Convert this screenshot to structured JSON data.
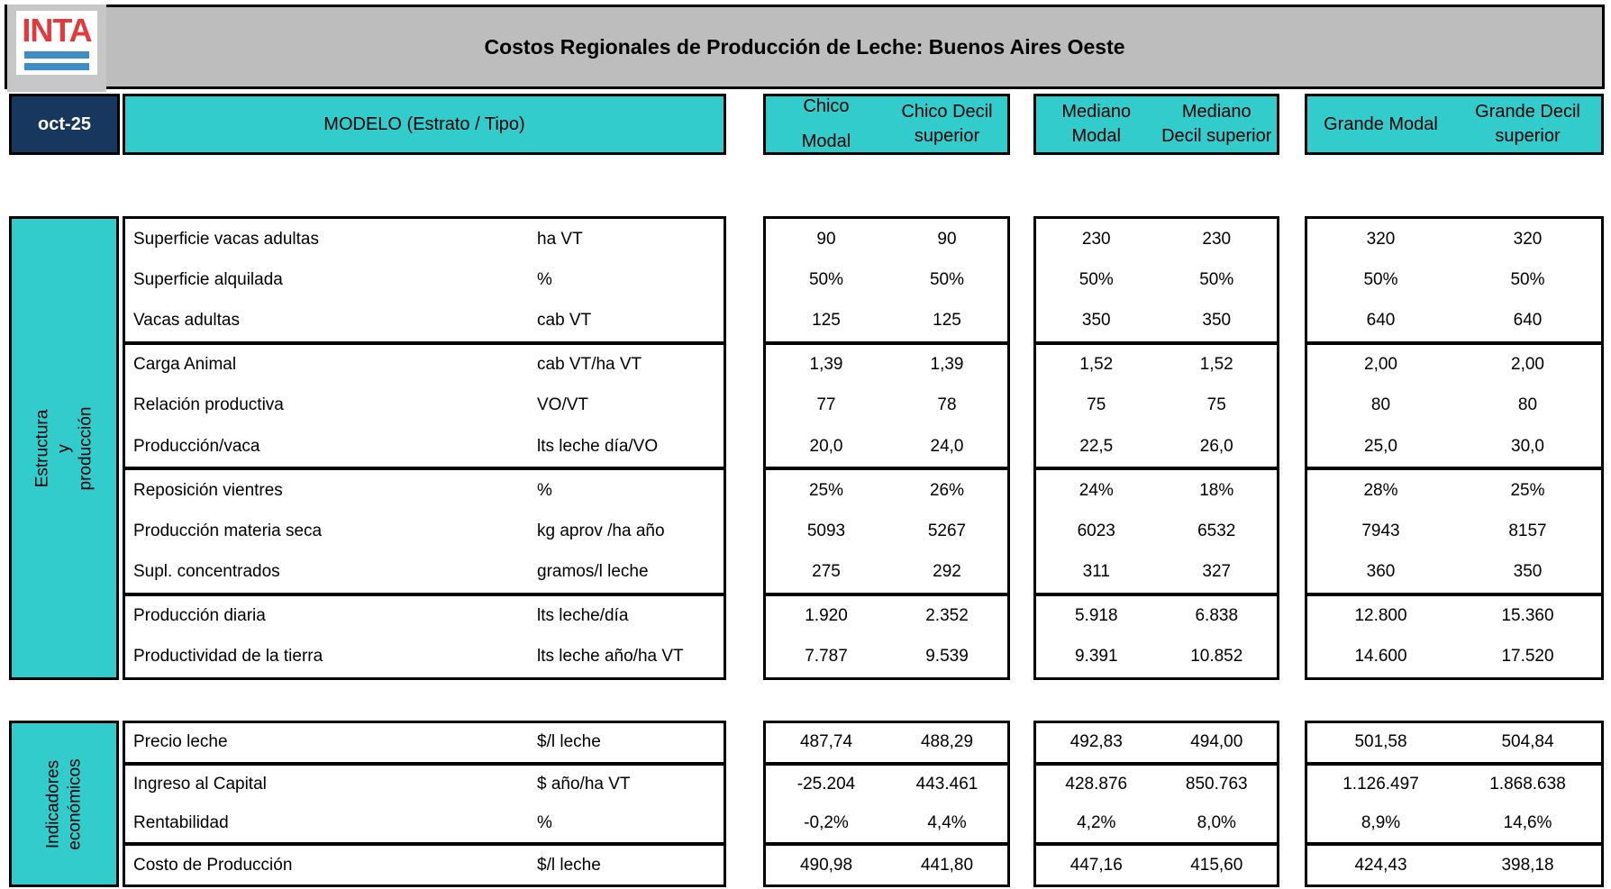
{
  "logo": {
    "text": "INTA"
  },
  "title": "Costos Regionales de Producción de Leche: Buenos Aires Oeste",
  "date_label": "oct-25",
  "model_header": "MODELO (Estrato / Tipo)",
  "colors": {
    "teal": "#33CCCC",
    "navy": "#17375E",
    "band_gray": "#BDBDBD",
    "logo_red": "#E4393C",
    "logo_blue": "#3E8DC5"
  },
  "column_headers": [
    {
      "text": "Chico\nModal"
    },
    {
      "text": "Chico Decil\nsuperior"
    },
    {
      "text": "Mediano\nModal"
    },
    {
      "text": "Mediano\nDecil superior"
    },
    {
      "text": "Grande Modal"
    },
    {
      "text": "Grande Decil\nsuperior"
    }
  ],
  "sections": [
    {
      "side_label": "Estructura y producción",
      "groups": [
        {
          "rows": [
            {
              "label": "Superficie vacas adultas",
              "unit": "ha VT",
              "values": [
                "90",
                "90",
                "230",
                "230",
                "320",
                "320"
              ]
            },
            {
              "label": "Superficie alquilada",
              "unit": "%",
              "values": [
                "50%",
                "50%",
                "50%",
                "50%",
                "50%",
                "50%"
              ]
            },
            {
              "label": "Vacas adultas",
              "unit": "cab VT",
              "values": [
                "125",
                "125",
                "350",
                "350",
                "640",
                "640"
              ]
            }
          ]
        },
        {
          "rows": [
            {
              "label": "Carga Animal",
              "unit": "cab VT/ha VT",
              "values": [
                "1,39",
                "1,39",
                "1,52",
                "1,52",
                "2,00",
                "2,00"
              ]
            },
            {
              "label": "Relación productiva",
              "unit": "VO/VT",
              "values": [
                "77",
                "78",
                "75",
                "75",
                "80",
                "80"
              ]
            },
            {
              "label": "Producción/vaca",
              "unit": "lts leche día/VO",
              "values": [
                "20,0",
                "24,0",
                "22,5",
                "26,0",
                "25,0",
                "30,0"
              ]
            }
          ]
        },
        {
          "rows": [
            {
              "label": "Reposición vientres",
              "unit": "%",
              "values": [
                "25%",
                "26%",
                "24%",
                "18%",
                "28%",
                "25%"
              ]
            },
            {
              "label": "Producción materia seca",
              "unit": "kg aprov /ha año",
              "values": [
                "5093",
                "5267",
                "6023",
                "6532",
                "7943",
                "8157"
              ]
            },
            {
              "label": "Supl. concentrados",
              "unit": "gramos/l leche",
              "values": [
                "275",
                "292",
                "311",
                "327",
                "360",
                "350"
              ]
            }
          ]
        },
        {
          "rows": [
            {
              "label": "Producción diaria",
              "unit": "lts leche/día",
              "values": [
                "1.920",
                "2.352",
                "5.918",
                "6.838",
                "12.800",
                "15.360"
              ]
            },
            {
              "label": "Productividad de la tierra",
              "unit": "lts leche año/ha VT",
              "values": [
                "7.787",
                "9.539",
                "9.391",
                "10.852",
                "14.600",
                "17.520"
              ]
            }
          ]
        }
      ]
    },
    {
      "side_label": "Indicadores\neconómicos",
      "groups": [
        {
          "rows": [
            {
              "label": "Precio leche",
              "unit": "$/l leche",
              "values": [
                "487,74",
                "488,29",
                "492,83",
                "494,00",
                "501,58",
                "504,84"
              ]
            }
          ]
        },
        {
          "rows": [
            {
              "label": "Ingreso al Capital",
              "unit": "$ año/ha VT",
              "values": [
                "-25.204",
                "443.461",
                "428.876",
                "850.763",
                "1.126.497",
                "1.868.638"
              ]
            },
            {
              "label": "Rentabilidad",
              "unit": "%",
              "values": [
                "-0,2%",
                "4,4%",
                "4,2%",
                "8,0%",
                "8,9%",
                "14,6%"
              ]
            }
          ]
        },
        {
          "rows": [
            {
              "label": "Costo de Producción",
              "unit": "$/l leche",
              "values": [
                "490,98",
                "441,80",
                "447,16",
                "415,60",
                "424,43",
                "398,18"
              ]
            }
          ]
        }
      ]
    }
  ]
}
